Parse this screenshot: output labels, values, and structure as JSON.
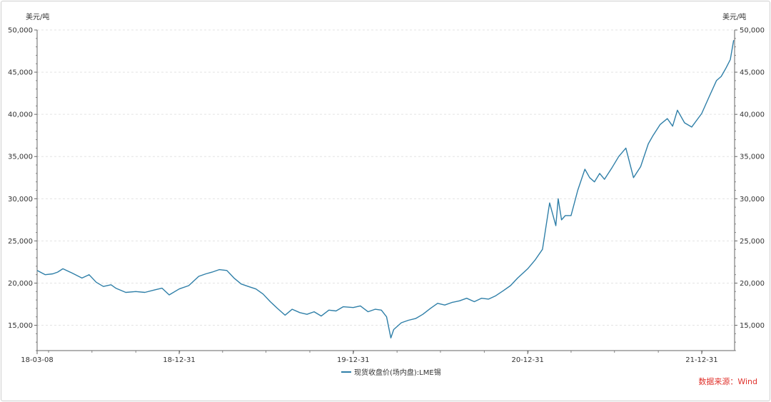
{
  "chart_data": {
    "type": "line",
    "unit_left": "美元/吨",
    "unit_right": "美元/吨",
    "ylim": [
      12000,
      50000
    ],
    "yticks": [
      15000,
      20000,
      25000,
      30000,
      35000,
      40000,
      45000,
      50000
    ],
    "ytick_labels": [
      "15,000",
      "20,000",
      "25,000",
      "30,000",
      "35,000",
      "40,000",
      "45,000",
      "50,000"
    ],
    "xlim": [
      "2018-03-08",
      "2022-03-10"
    ],
    "xticks": [
      "2018-03-08",
      "2018-12-31",
      "2019-12-31",
      "2020-12-31",
      "2021-12-31"
    ],
    "xtick_labels": [
      "18-03-08",
      "18-12-31",
      "19-12-31",
      "20-12-31",
      "21-12-31"
    ],
    "grid": true,
    "legend_position": "bottom-center",
    "series": [
      {
        "name": "现货收盘价(场内盘):LME锡",
        "color": "#2f7fa8",
        "x": [
          "2018-03-08",
          "2018-03-25",
          "2018-04-10",
          "2018-04-20",
          "2018-05-01",
          "2018-05-20",
          "2018-06-10",
          "2018-06-25",
          "2018-07-10",
          "2018-07-25",
          "2018-08-10",
          "2018-08-20",
          "2018-09-10",
          "2018-10-01",
          "2018-10-20",
          "2018-11-10",
          "2018-11-25",
          "2018-12-10",
          "2018-12-31",
          "2019-01-20",
          "2019-02-10",
          "2019-02-25",
          "2019-03-10",
          "2019-03-25",
          "2019-04-10",
          "2019-04-25",
          "2019-05-10",
          "2019-05-25",
          "2019-06-10",
          "2019-06-25",
          "2019-07-10",
          "2019-07-25",
          "2019-08-10",
          "2019-08-25",
          "2019-09-10",
          "2019-09-25",
          "2019-10-10",
          "2019-10-25",
          "2019-11-10",
          "2019-11-25",
          "2019-12-10",
          "2019-12-31",
          "2020-01-15",
          "2020-01-31",
          "2020-02-15",
          "2020-02-28",
          "2020-03-10",
          "2020-03-19",
          "2020-03-25",
          "2020-04-10",
          "2020-04-25",
          "2020-05-10",
          "2020-05-25",
          "2020-06-10",
          "2020-06-25",
          "2020-07-10",
          "2020-07-25",
          "2020-08-10",
          "2020-08-25",
          "2020-09-10",
          "2020-09-25",
          "2020-10-10",
          "2020-10-25",
          "2020-11-10",
          "2020-11-25",
          "2020-12-10",
          "2020-12-31",
          "2021-01-15",
          "2021-01-31",
          "2021-02-15",
          "2021-02-28",
          "2021-03-05",
          "2021-03-12",
          "2021-03-20",
          "2021-04-01",
          "2021-04-15",
          "2021-04-30",
          "2021-05-10",
          "2021-05-20",
          "2021-05-31",
          "2021-06-10",
          "2021-06-25",
          "2021-07-10",
          "2021-07-25",
          "2021-08-10",
          "2021-08-25",
          "2021-09-10",
          "2021-09-20",
          "2021-10-05",
          "2021-10-20",
          "2021-10-31",
          "2021-11-10",
          "2021-11-25",
          "2021-12-10",
          "2021-12-31",
          "2022-01-15",
          "2022-01-31",
          "2022-02-10",
          "2022-02-20",
          "2022-03-01",
          "2022-03-08"
        ],
        "values": [
          21500,
          21000,
          21100,
          21300,
          21700,
          21200,
          20600,
          21000,
          20100,
          19600,
          19800,
          19400,
          18900,
          19000,
          18900,
          19200,
          19400,
          18600,
          19300,
          19700,
          20800,
          21100,
          21300,
          21600,
          21500,
          20600,
          19900,
          19600,
          19300,
          18700,
          17800,
          17000,
          16200,
          16900,
          16500,
          16300,
          16600,
          16100,
          16800,
          16700,
          17200,
          17100,
          17300,
          16600,
          16900,
          16800,
          16000,
          13500,
          14500,
          15300,
          15600,
          15800,
          16300,
          17000,
          17600,
          17400,
          17700,
          17900,
          18200,
          17800,
          18200,
          18100,
          18500,
          19100,
          19700,
          20600,
          21700,
          22700,
          24000,
          29500,
          26800,
          30000,
          27500,
          28000,
          28000,
          31000,
          33500,
          32500,
          32000,
          33000,
          32300,
          33600,
          35000,
          36000,
          32500,
          33800,
          36500,
          37500,
          38800,
          39500,
          38600,
          40500,
          39000,
          38500,
          40100,
          42000,
          44000,
          44500,
          45500,
          46500,
          48800
        ]
      }
    ],
    "source_note": "数据来源：Wind"
  }
}
